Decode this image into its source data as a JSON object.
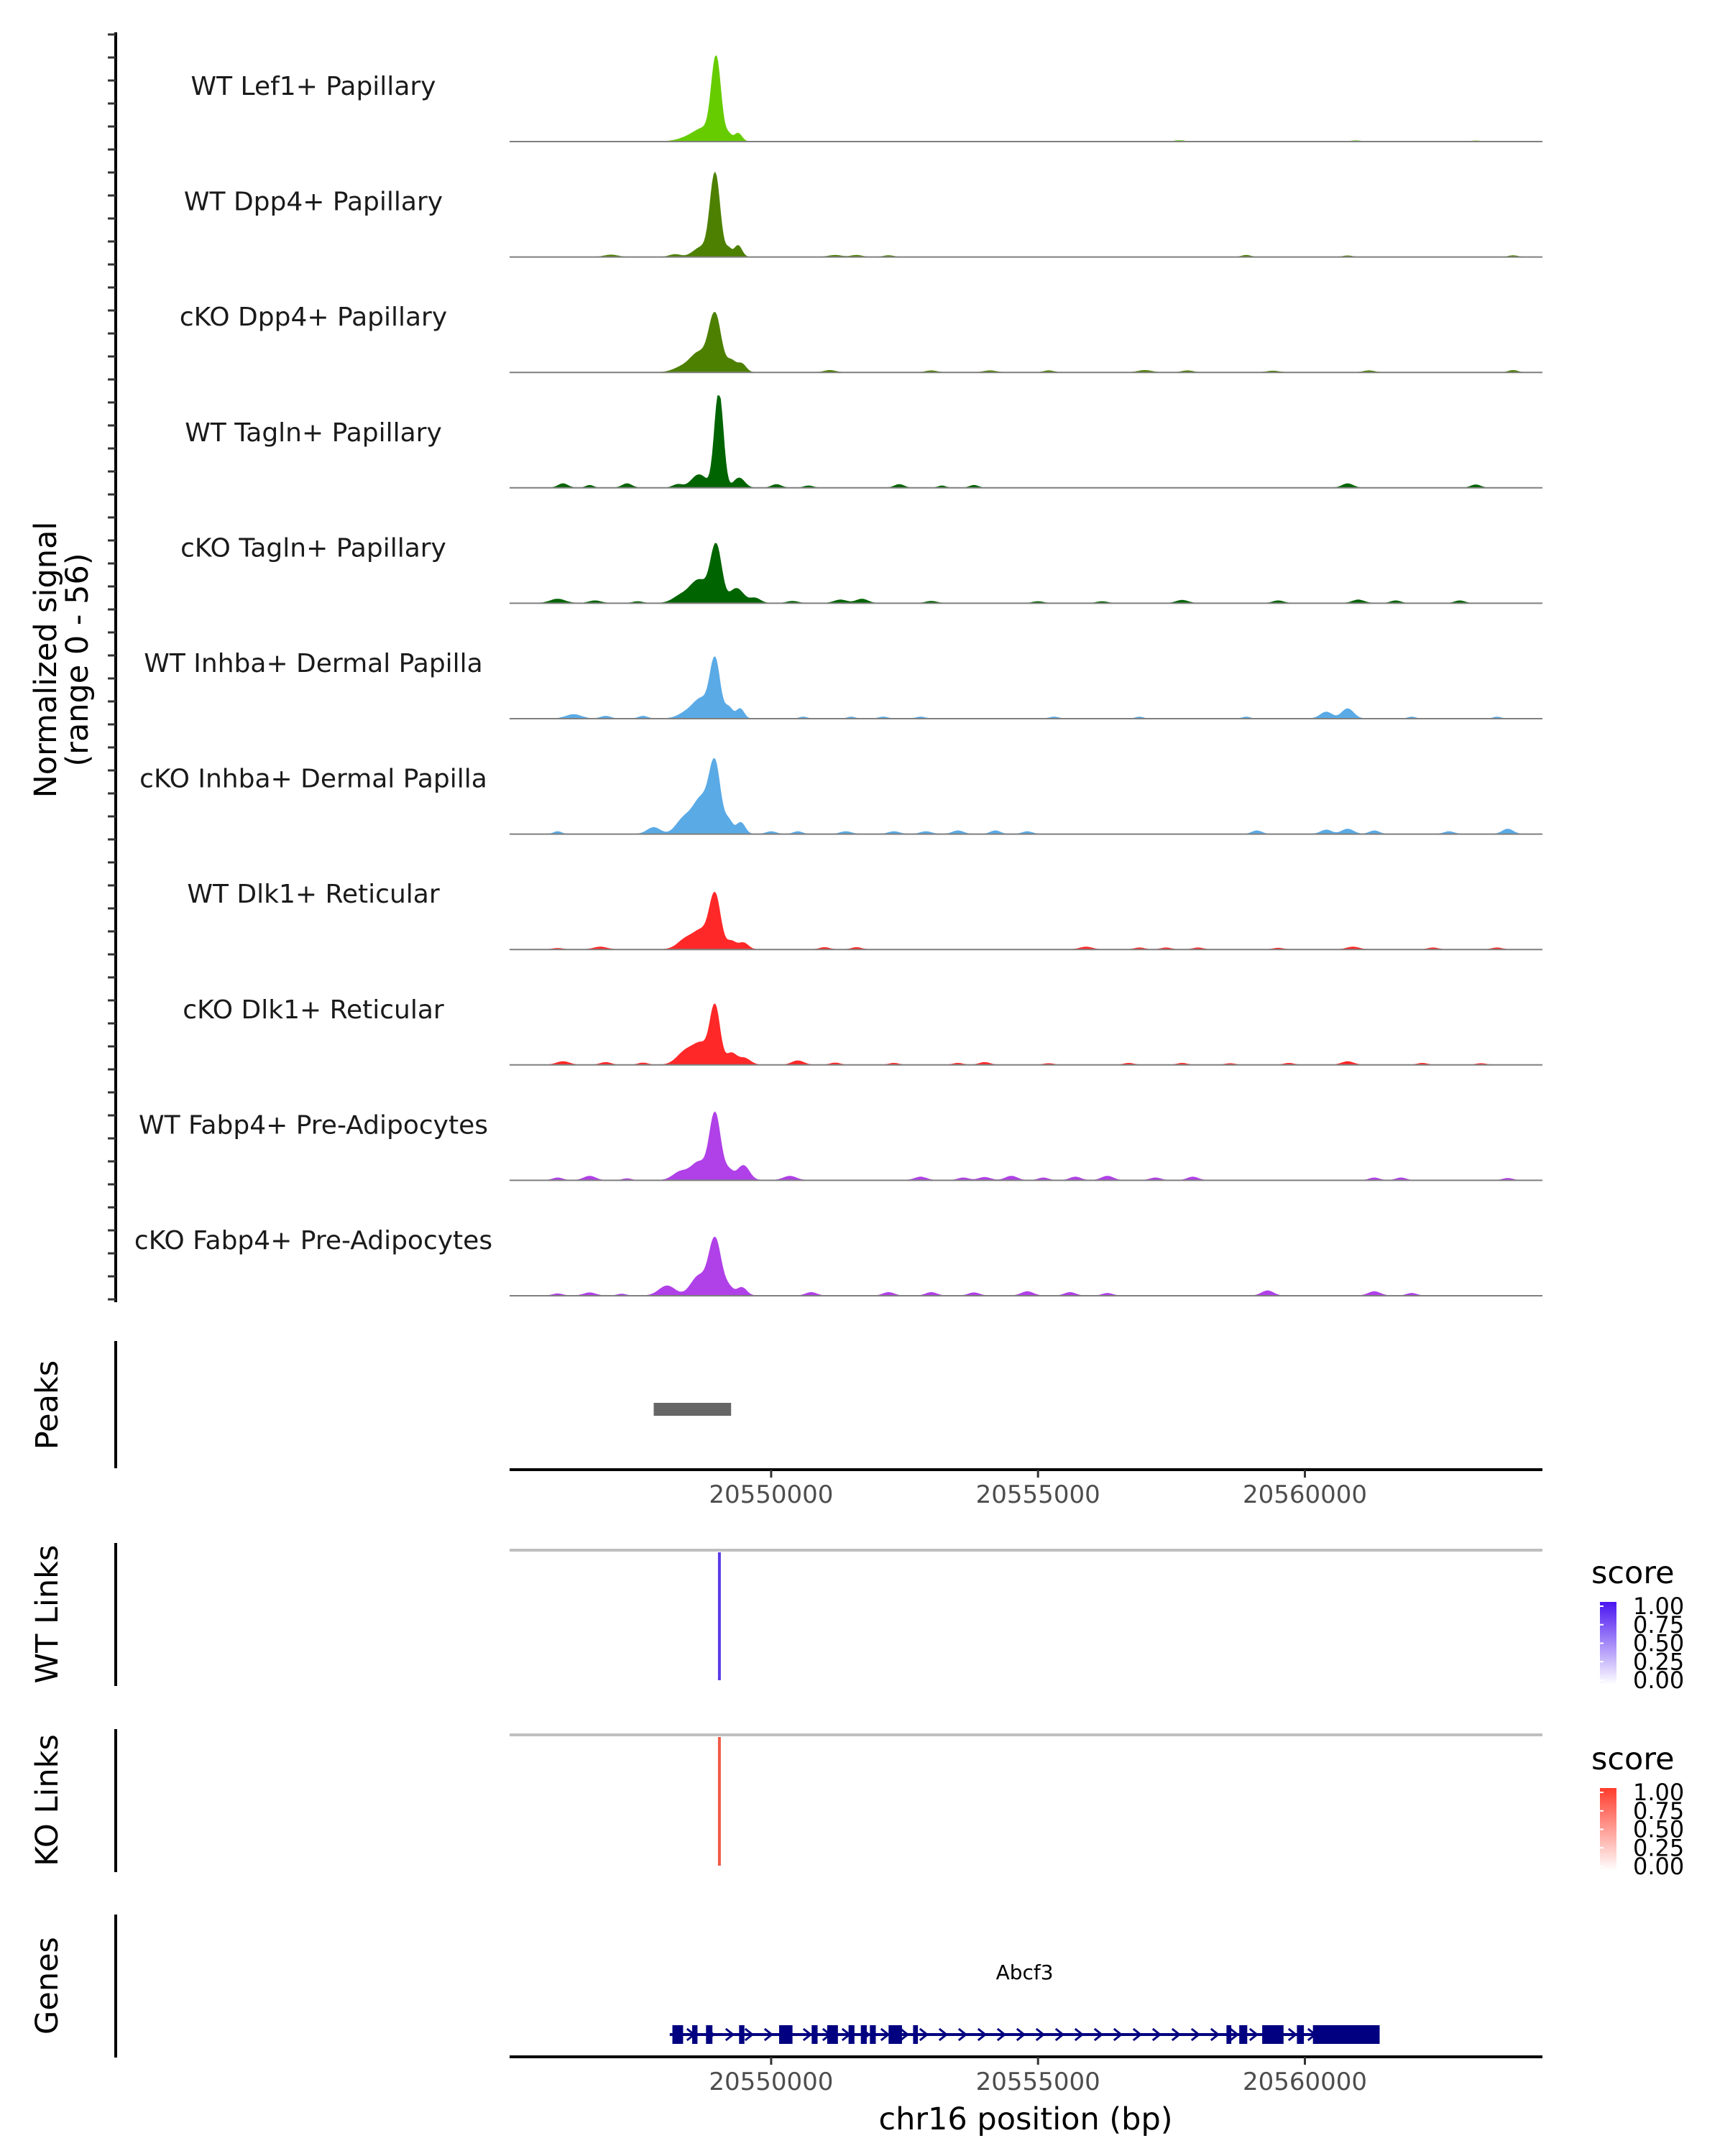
{
  "chart_data": {
    "type": "area",
    "title": "",
    "xlabel": "chr16 position (bp)",
    "xlim": [
      20545100,
      20564450
    ],
    "x_ticks": [
      20550000,
      20555000,
      20560000
    ],
    "x_tick_labels": [
      "20550000",
      "20555000",
      "20560000"
    ],
    "coverage_ylabel": "Normalized signal",
    "coverage_yrange_label": "(range 0 - 56)",
    "ylim": [
      0,
      56
    ],
    "series": [
      {
        "name": "WT Lef1+ Papillary",
        "color": "#66cc00",
        "peaks": [
          [
            20548400,
            1.5,
            180
          ],
          [
            20548750,
            8,
            200
          ],
          [
            20548970,
            48,
            85
          ],
          [
            20549200,
            4,
            60
          ],
          [
            20549380,
            5,
            70
          ],
          [
            20557650,
            0.6,
            90
          ],
          [
            20560950,
            0.5,
            90
          ],
          [
            20563200,
            0.4,
            90
          ]
        ]
      },
      {
        "name": "WT Dpp4+ Papillary",
        "color": "#4d8000",
        "peaks": [
          [
            20547000,
            1.2,
            120
          ],
          [
            20548200,
            1.5,
            100
          ],
          [
            20548700,
            6,
            150
          ],
          [
            20548950,
            50,
            90
          ],
          [
            20549200,
            5,
            60
          ],
          [
            20549380,
            7,
            70
          ],
          [
            20551200,
            1,
            120
          ],
          [
            20551600,
            1,
            100
          ],
          [
            20552200,
            0.8,
            90
          ],
          [
            20558900,
            1,
            80
          ],
          [
            20560800,
            0.7,
            80
          ],
          [
            20563900,
            0.8,
            80
          ]
        ]
      },
      {
        "name": "cKO Dpp4+ Papillary",
        "color": "#4d8000",
        "peaks": [
          [
            20548300,
            2.5,
            150
          ],
          [
            20548650,
            12,
            170
          ],
          [
            20548950,
            34,
            110
          ],
          [
            20549250,
            7,
            90
          ],
          [
            20549450,
            5,
            80
          ],
          [
            20551100,
            1.2,
            100
          ],
          [
            20553000,
            1,
            100
          ],
          [
            20554100,
            1,
            110
          ],
          [
            20555200,
            1,
            90
          ],
          [
            20557000,
            1.2,
            120
          ],
          [
            20557800,
            1,
            100
          ],
          [
            20559400,
            0.8,
            110
          ],
          [
            20561200,
            1,
            100
          ],
          [
            20563900,
            1.2,
            80
          ]
        ]
      },
      {
        "name": "WT Tagln+ Papillary",
        "color": "#006400",
        "peaks": [
          [
            20546100,
            2.5,
            90
          ],
          [
            20546600,
            1.5,
            70
          ],
          [
            20547300,
            2.5,
            90
          ],
          [
            20548250,
            2,
            90
          ],
          [
            20548650,
            8,
            140
          ],
          [
            20549020,
            58,
            80
          ],
          [
            20549400,
            6,
            100
          ],
          [
            20550100,
            2,
            90
          ],
          [
            20550700,
            1.2,
            80
          ],
          [
            20552400,
            2,
            90
          ],
          [
            20553200,
            1.2,
            70
          ],
          [
            20553800,
            1.5,
            80
          ],
          [
            20560800,
            2.5,
            100
          ],
          [
            20563200,
            1.8,
            90
          ]
        ]
      },
      {
        "name": "cKO Tagln+ Papillary",
        "color": "#006400",
        "peaks": [
          [
            20546000,
            2.5,
            140
          ],
          [
            20546700,
            1.5,
            110
          ],
          [
            20547500,
            1,
            90
          ],
          [
            20548300,
            4,
            150
          ],
          [
            20548650,
            14,
            170
          ],
          [
            20548970,
            34,
            100
          ],
          [
            20549350,
            9,
            130
          ],
          [
            20549700,
            3,
            100
          ],
          [
            20550400,
            1.2,
            100
          ],
          [
            20551300,
            2,
            120
          ],
          [
            20551700,
            2.5,
            110
          ],
          [
            20553000,
            1.2,
            100
          ],
          [
            20555000,
            1,
            100
          ],
          [
            20556200,
            1,
            100
          ],
          [
            20557700,
            1.8,
            110
          ],
          [
            20559500,
            1.5,
            100
          ],
          [
            20561000,
            2,
            110
          ],
          [
            20561700,
            1.5,
            90
          ],
          [
            20562900,
            1.5,
            90
          ]
        ]
      },
      {
        "name": "WT Inhba+ Dermal Papilla",
        "color": "#5aaae6",
        "peaks": [
          [
            20546300,
            2.5,
            140
          ],
          [
            20546900,
            1.5,
            90
          ],
          [
            20547600,
            1.5,
            80
          ],
          [
            20548400,
            3,
            150
          ],
          [
            20548700,
            12,
            160
          ],
          [
            20548950,
            34,
            90
          ],
          [
            20549200,
            7,
            80
          ],
          [
            20549420,
            6,
            70
          ],
          [
            20550600,
            1,
            70
          ],
          [
            20551500,
            1,
            70
          ],
          [
            20552100,
            1,
            80
          ],
          [
            20552800,
            1,
            80
          ],
          [
            20555300,
            1,
            80
          ],
          [
            20556900,
            1,
            70
          ],
          [
            20558900,
            1,
            70
          ],
          [
            20560400,
            4,
            110
          ],
          [
            20560800,
            6,
            110
          ],
          [
            20562000,
            1,
            70
          ],
          [
            20563600,
            1,
            70
          ]
        ]
      },
      {
        "name": "cKO Inhba+ Dermal Papilla",
        "color": "#5aaae6",
        "peaks": [
          [
            20546000,
            1.5,
            70
          ],
          [
            20547800,
            4,
            120
          ],
          [
            20548350,
            8,
            140
          ],
          [
            20548700,
            22,
            170
          ],
          [
            20548950,
            38,
            100
          ],
          [
            20549200,
            8,
            80
          ],
          [
            20549430,
            7,
            80
          ],
          [
            20550000,
            1.5,
            90
          ],
          [
            20550500,
            1.5,
            80
          ],
          [
            20551400,
            1.5,
            100
          ],
          [
            20552300,
            1.5,
            100
          ],
          [
            20552900,
            1.5,
            100
          ],
          [
            20553500,
            2,
            100
          ],
          [
            20554200,
            2,
            90
          ],
          [
            20554800,
            1.5,
            90
          ],
          [
            20559100,
            2,
            90
          ],
          [
            20560400,
            2.5,
            100
          ],
          [
            20560800,
            3,
            110
          ],
          [
            20561300,
            2,
            90
          ],
          [
            20562700,
            1.5,
            90
          ],
          [
            20563800,
            3,
            100
          ]
        ]
      },
      {
        "name": "WT Dlk1+ Reticular",
        "color": "#ff2828",
        "peaks": [
          [
            20546000,
            0.7,
            90
          ],
          [
            20546800,
            1.5,
            120
          ],
          [
            20548400,
            6,
            150
          ],
          [
            20548700,
            11,
            150
          ],
          [
            20548950,
            32,
            100
          ],
          [
            20549250,
            5,
            90
          ],
          [
            20549480,
            4,
            90
          ],
          [
            20551000,
            1.2,
            90
          ],
          [
            20551600,
            1.2,
            90
          ],
          [
            20555900,
            1.5,
            110
          ],
          [
            20556900,
            1,
            90
          ],
          [
            20557400,
            1,
            90
          ],
          [
            20558000,
            1,
            90
          ],
          [
            20559500,
            0.8,
            90
          ],
          [
            20560900,
            1.5,
            110
          ],
          [
            20562400,
            1,
            90
          ],
          [
            20563600,
            1,
            90
          ]
        ]
      },
      {
        "name": "cKO Dlk1+ Reticular",
        "color": "#ff2828",
        "peaks": [
          [
            20546100,
            2,
            120
          ],
          [
            20546900,
            1.5,
            100
          ],
          [
            20547600,
            1.2,
            90
          ],
          [
            20548400,
            8,
            160
          ],
          [
            20548700,
            12,
            150
          ],
          [
            20548950,
            34,
            90
          ],
          [
            20549250,
            7,
            100
          ],
          [
            20549500,
            4,
            110
          ],
          [
            20550500,
            2.5,
            110
          ],
          [
            20551200,
            1.2,
            90
          ],
          [
            20552300,
            1,
            90
          ],
          [
            20553500,
            1,
            90
          ],
          [
            20554000,
            1.5,
            100
          ],
          [
            20555200,
            0.8,
            90
          ],
          [
            20556700,
            1,
            90
          ],
          [
            20557700,
            1,
            90
          ],
          [
            20558600,
            0.8,
            90
          ],
          [
            20559700,
            1,
            90
          ],
          [
            20560800,
            2,
            110
          ],
          [
            20562200,
            1,
            90
          ],
          [
            20563300,
            0.8,
            90
          ]
        ]
      },
      {
        "name": "WT Fabp4+ Pre-Adipocytes",
        "color": "#b040e8",
        "peaks": [
          [
            20546000,
            1.5,
            90
          ],
          [
            20546600,
            2.5,
            110
          ],
          [
            20547300,
            1,
            80
          ],
          [
            20548300,
            5,
            140
          ],
          [
            20548650,
            11,
            150
          ],
          [
            20548950,
            40,
            100
          ],
          [
            20549200,
            6,
            90
          ],
          [
            20549480,
            9,
            110
          ],
          [
            20550350,
            2.5,
            120
          ],
          [
            20552800,
            2,
            110
          ],
          [
            20553600,
            1.5,
            100
          ],
          [
            20554000,
            1.8,
            110
          ],
          [
            20554500,
            2.5,
            110
          ],
          [
            20555100,
            1.5,
            90
          ],
          [
            20555700,
            2,
            100
          ],
          [
            20556300,
            2.5,
            110
          ],
          [
            20557200,
            1.5,
            100
          ],
          [
            20557900,
            2,
            100
          ],
          [
            20561300,
            1.5,
            90
          ],
          [
            20561800,
            1.5,
            90
          ],
          [
            20563800,
            1.2,
            90
          ]
        ]
      },
      {
        "name": "cKO Fabp4+ Pre-Adipocytes",
        "color": "#b040e8",
        "peaks": [
          [
            20546000,
            1.2,
            90
          ],
          [
            20546600,
            1.8,
            110
          ],
          [
            20547200,
            1,
            80
          ],
          [
            20548050,
            6,
            150
          ],
          [
            20548650,
            12,
            150
          ],
          [
            20548950,
            34,
            110
          ],
          [
            20549200,
            5,
            90
          ],
          [
            20549450,
            5,
            90
          ],
          [
            20550750,
            2,
            100
          ],
          [
            20552200,
            2,
            100
          ],
          [
            20553000,
            2,
            100
          ],
          [
            20553800,
            1.8,
            100
          ],
          [
            20554800,
            2.5,
            110
          ],
          [
            20555600,
            2,
            100
          ],
          [
            20556300,
            1.5,
            90
          ],
          [
            20559300,
            3,
            110
          ],
          [
            20561300,
            2.5,
            110
          ],
          [
            20562000,
            1.5,
            90
          ]
        ]
      }
    ],
    "peaks_track": {
      "label": "Peaks",
      "regions": [
        [
          20547800,
          20549250
        ]
      ]
    },
    "links": [
      {
        "label": "WT Links",
        "position": 20549030,
        "score": 1.0,
        "color": "#5a3ae6"
      },
      {
        "label": "KO Links",
        "position": 20549030,
        "score": 0.85,
        "color": "#f05a46"
      }
    ],
    "link_legends": [
      {
        "title": "score",
        "color": "#4a14f0",
        "labels": [
          "1.00",
          "0.75",
          "0.50",
          "0.25",
          "0.00"
        ]
      },
      {
        "title": "score",
        "color": "#ff3c2c",
        "labels": [
          "1.00",
          "0.75",
          "0.50",
          "0.25",
          "0.00"
        ]
      }
    ],
    "genes_track": {
      "label": "Genes",
      "gene": "Abcf3",
      "start": 20548100,
      "end": 20561400,
      "color": "#000080",
      "exons": [
        [
          20548150,
          20548350
        ],
        [
          20548520,
          20548620
        ],
        [
          20548780,
          20548900
        ],
        [
          20549400,
          20549500
        ],
        [
          20550150,
          20550400
        ],
        [
          20550760,
          20550870
        ],
        [
          20551050,
          20551250
        ],
        [
          20551450,
          20551560
        ],
        [
          20551680,
          20551790
        ],
        [
          20551850,
          20551960
        ],
        [
          20552200,
          20552450
        ],
        [
          20552660,
          20552750
        ],
        [
          20558530,
          20558620
        ],
        [
          20558770,
          20558920
        ],
        [
          20559200,
          20559600
        ],
        [
          20559850,
          20559980
        ],
        [
          20560150,
          20561400
        ]
      ],
      "strand": "+"
    }
  }
}
